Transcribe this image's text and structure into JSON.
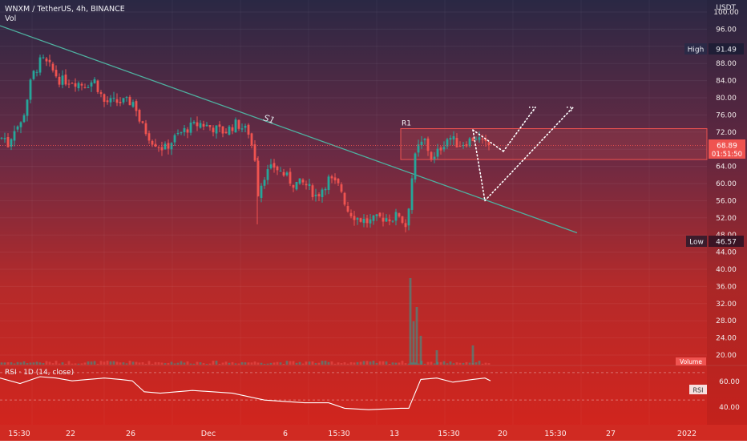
{
  "header": {
    "symbol_line": "WNXM / TetherUS, 4h, BINANCE",
    "volume_label": "Vol",
    "currency": "USDT"
  },
  "price_axis": {
    "ticks": [
      "20.00",
      "24.00",
      "28.00",
      "32.00",
      "36.00",
      "40.00",
      "44.00",
      "48.00",
      "52.00",
      "56.00",
      "60.00",
      "64.00",
      "68.00",
      "72.00",
      "76.00",
      "80.00",
      "84.00",
      "88.00",
      "92.00",
      "96.00",
      "100.00"
    ],
    "high": {
      "label": "High",
      "value": "91.49"
    },
    "low": {
      "label": "Low",
      "value": "46.57"
    },
    "last_price": "68.89",
    "countdown": "01:51:50",
    "volume_badge": "Volume"
  },
  "rsi_panel": {
    "title": "RSI · 1D (14, close)",
    "badge": "RSI",
    "ticks": [
      "60.00",
      "40.00"
    ]
  },
  "time_axis": {
    "labels": [
      "15:30",
      "22",
      "26",
      "Dec",
      "6",
      "15:30",
      "13",
      "15:30",
      "20",
      "15:30",
      "27",
      "2022"
    ]
  },
  "annotations": {
    "trendline_label": "S1",
    "resistance_label": "R1"
  },
  "colors": {
    "up": "#26a69a",
    "down": "#ef5350",
    "trendline": "#4fb0a0",
    "bg_top": "#2a2844",
    "bg_bottom": "#d4241c"
  },
  "chart_data": {
    "type": "candlestick",
    "ylim": [
      18,
      102
    ],
    "close_path": [
      [
        0,
        70.5
      ],
      [
        5,
        71
      ],
      [
        10,
        69
      ],
      [
        18,
        73
      ],
      [
        27,
        74
      ],
      [
        40,
        85
      ],
      [
        52,
        89
      ],
      [
        63,
        87
      ],
      [
        75,
        84
      ],
      [
        90,
        84
      ],
      [
        105,
        83
      ],
      [
        118,
        84
      ],
      [
        130,
        79
      ],
      [
        150,
        79
      ],
      [
        168,
        79
      ],
      [
        175,
        74
      ],
      [
        190,
        70
      ],
      [
        205,
        68
      ],
      [
        220,
        71
      ],
      [
        235,
        73
      ],
      [
        250,
        74
      ],
      [
        265,
        73
      ],
      [
        280,
        72
      ],
      [
        295,
        74
      ],
      [
        310,
        72
      ],
      [
        318,
        66
      ],
      [
        322,
        58
      ],
      [
        330,
        62
      ],
      [
        342,
        64
      ],
      [
        355,
        62
      ],
      [
        365,
        60
      ],
      [
        380,
        60
      ],
      [
        395,
        57
      ],
      [
        410,
        61
      ],
      [
        425,
        59
      ],
      [
        433,
        54
      ],
      [
        445,
        52
      ],
      [
        460,
        51
      ],
      [
        475,
        52
      ],
      [
        490,
        52
      ],
      [
        500,
        53
      ],
      [
        505,
        49
      ],
      [
        510,
        55
      ],
      [
        515,
        63
      ],
      [
        520,
        68
      ],
      [
        530,
        70
      ],
      [
        540,
        65
      ],
      [
        548,
        68
      ],
      [
        560,
        71
      ],
      [
        572,
        69
      ],
      [
        585,
        70
      ],
      [
        595,
        71
      ],
      [
        603,
        69
      ],
      [
        612,
        68.9
      ]
    ],
    "high_label": 91.49,
    "low_label": 46.57,
    "last_price": 68.89,
    "rsi_values": [
      [
        0,
        66
      ],
      [
        25,
        62
      ],
      [
        50,
        67
      ],
      [
        70,
        66
      ],
      [
        90,
        64
      ],
      [
        110,
        65
      ],
      [
        130,
        66
      ],
      [
        150,
        65
      ],
      [
        165,
        64
      ],
      [
        180,
        56
      ],
      [
        200,
        55
      ],
      [
        240,
        57
      ],
      [
        290,
        55
      ],
      [
        330,
        50
      ],
      [
        380,
        48
      ],
      [
        410,
        48
      ],
      [
        430,
        44
      ],
      [
        460,
        43
      ],
      [
        500,
        44
      ],
      [
        510,
        44
      ],
      [
        525,
        65
      ],
      [
        545,
        66
      ],
      [
        565,
        63
      ],
      [
        590,
        65
      ],
      [
        605,
        66
      ],
      [
        612,
        64
      ]
    ],
    "rsi_ylim": [
      32,
      74
    ],
    "volume": {
      "spikes": [
        [
          512,
          36
        ],
        [
          516,
          18
        ],
        [
          520,
          24
        ],
        [
          525,
          12
        ],
        [
          545,
          6
        ],
        [
          590,
          8
        ]
      ]
    },
    "trendline": {
      "from": [
        0,
        96.8
      ],
      "to": [
        720,
        48.5
      ]
    },
    "resistance_zone": {
      "from_x": 500,
      "to_x": 882,
      "top": 72.8,
      "bottom": 65.6
    },
    "projection_paths": [
      [
        [
          590,
          72.5
        ],
        [
          605,
          56
        ]
      ],
      [
        [
          605,
          56
        ],
        [
          715,
          77.8
        ]
      ],
      [
        [
          590,
          72.5
        ],
        [
          628,
          67.5
        ]
      ],
      [
        [
          628,
          67.5
        ],
        [
          668,
          77.8
        ]
      ]
    ]
  }
}
